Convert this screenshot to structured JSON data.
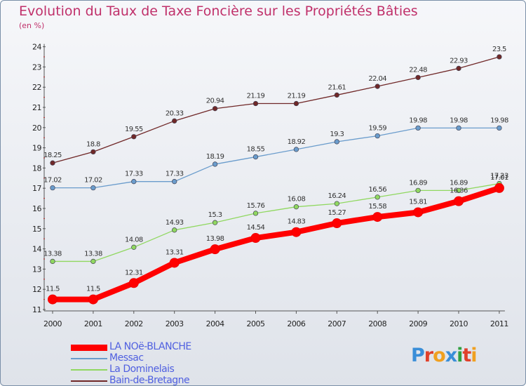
{
  "title": "Evolution du Taux de Taxe Foncière sur les Propriétés Bâties",
  "subtitle": "(en %)",
  "logo": {
    "text": "Proxiti",
    "colors": [
      "#3a8ed8",
      "#e0402a",
      "#f0a020",
      "#3a8ed8",
      "#30a040",
      "#e0402a",
      "#f0a020"
    ]
  },
  "chart_data": {
    "type": "line",
    "title": "Evolution du Taux de Taxe Foncière sur les Propriétés Bâties",
    "ylabel": "(en %)",
    "xlabel": "",
    "x": [
      "2000",
      "2001",
      "2002",
      "2003",
      "2004",
      "2005",
      "2006",
      "2007",
      "2008",
      "2009",
      "2010",
      "2011"
    ],
    "ylim": [
      11,
      24
    ],
    "yticks": [
      "11",
      "12",
      "13",
      "14",
      "15",
      "16",
      "17",
      "18",
      "19",
      "20",
      "21",
      "22",
      "23",
      "24"
    ],
    "legend_position": "bottom-left",
    "series": [
      {
        "name": "LA NOë-BLANCHE",
        "color": "#ff0000",
        "values": [
          11.5,
          11.5,
          12.31,
          13.31,
          13.98,
          14.54,
          14.83,
          15.27,
          15.58,
          15.81,
          16.36,
          17.01
        ],
        "labels": [
          "11.5",
          "11.5",
          "12.31",
          "13.31",
          "13.98",
          "14.54",
          "14.83",
          "15.27",
          "15.58",
          "15.81",
          "16.36",
          "17.01"
        ]
      },
      {
        "name": "Messac",
        "color": "#6a9ccc",
        "values": [
          17.02,
          17.02,
          17.33,
          17.33,
          18.19,
          18.55,
          18.92,
          19.3,
          19.59,
          19.98,
          19.98,
          19.98
        ],
        "labels": [
          "17.02",
          "17.02",
          "17.33",
          "17.33",
          "18.19",
          "18.55",
          "18.92",
          "19.3",
          "19.59",
          "19.98",
          "19.98",
          "19.98"
        ]
      },
      {
        "name": "La Dominelais",
        "color": "#90d860",
        "values": [
          13.38,
          13.38,
          14.08,
          14.93,
          15.3,
          15.76,
          16.08,
          16.24,
          16.56,
          16.89,
          16.89,
          17.23
        ],
        "labels": [
          "13.38",
          "13.38",
          "14.08",
          "14.93",
          "15.3",
          "15.76",
          "16.08",
          "16.24",
          "16.56",
          "16.89",
          "16.89",
          "17.23"
        ]
      },
      {
        "name": "Bain-de-Bretagne",
        "color": "#702828",
        "values": [
          18.25,
          18.8,
          19.55,
          20.33,
          20.94,
          21.19,
          21.19,
          21.61,
          22.04,
          22.48,
          22.93,
          23.5
        ],
        "labels": [
          "18.25",
          "18.8",
          "19.55",
          "20.33",
          "20.94",
          "21.19",
          "21.19",
          "21.61",
          "22.04",
          "22.48",
          "22.93",
          "23.5"
        ]
      }
    ]
  }
}
